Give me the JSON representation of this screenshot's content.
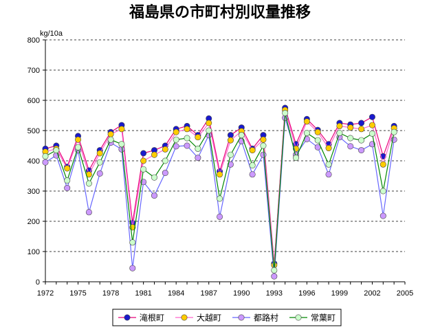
{
  "chart_data": {
    "type": "line",
    "title": "福島県の市町村別収量推移",
    "ylabel": "kg/10a",
    "xlabel": "",
    "xlim": [
      1972,
      2005
    ],
    "ylim": [
      0,
      800
    ],
    "x_ticks": [
      1972,
      1975,
      1978,
      1981,
      1984,
      1987,
      1990,
      1993,
      1996,
      1999,
      2002,
      2005
    ],
    "y_ticks": [
      0,
      100,
      200,
      300,
      400,
      500,
      600,
      700,
      800
    ],
    "grid": true,
    "legend_position": "bottom",
    "x": [
      1972,
      1973,
      1974,
      1975,
      1976,
      1977,
      1978,
      1979,
      1980,
      1981,
      1982,
      1983,
      1984,
      1985,
      1986,
      1987,
      1988,
      1989,
      1990,
      1991,
      1992,
      1993,
      1994,
      1995,
      1996,
      1997,
      1998,
      1999,
      2000,
      2001,
      2002,
      2003,
      2004
    ],
    "series": [
      {
        "name": "滝根町",
        "line_color": "#e8007a",
        "marker_fill": "#1a1acc",
        "values": [
          440,
          450,
          380,
          482,
          368,
          435,
          495,
          518,
          195,
          425,
          435,
          450,
          505,
          515,
          485,
          540,
          365,
          485,
          510,
          440,
          485,
          60,
          575,
          455,
          538,
          502,
          455,
          525,
          520,
          525,
          545,
          415,
          515
        ]
      },
      {
        "name": "大越町",
        "line_color": "#ff66cc",
        "marker_fill": "#ffcc00",
        "values": [
          430,
          440,
          375,
          470,
          355,
          425,
          488,
          505,
          180,
          400,
          420,
          438,
          495,
          505,
          478,
          525,
          355,
          468,
          498,
          435,
          470,
          55,
          568,
          440,
          530,
          495,
          442,
          515,
          510,
          505,
          518,
          388,
          508
        ]
      },
      {
        "name": "都路村",
        "line_color": "#6666ff",
        "marker_fill": "#cc99ff",
        "values": [
          395,
          418,
          310,
          435,
          230,
          358,
          460,
          438,
          45,
          330,
          285,
          360,
          448,
          450,
          410,
          485,
          215,
          388,
          465,
          355,
          420,
          18,
          542,
          420,
          472,
          445,
          355,
          478,
          448,
          435,
          455,
          218,
          470
        ]
      },
      {
        "name": "常葉町",
        "line_color": "#008800",
        "marker_fill": "#ccffcc",
        "values": [
          415,
          435,
          335,
          445,
          325,
          395,
          470,
          455,
          130,
          372,
          345,
          400,
          470,
          475,
          440,
          500,
          275,
          420,
          485,
          385,
          450,
          38,
          558,
          410,
          492,
          468,
          388,
          492,
          475,
          468,
          490,
          300,
          495
        ]
      }
    ]
  }
}
